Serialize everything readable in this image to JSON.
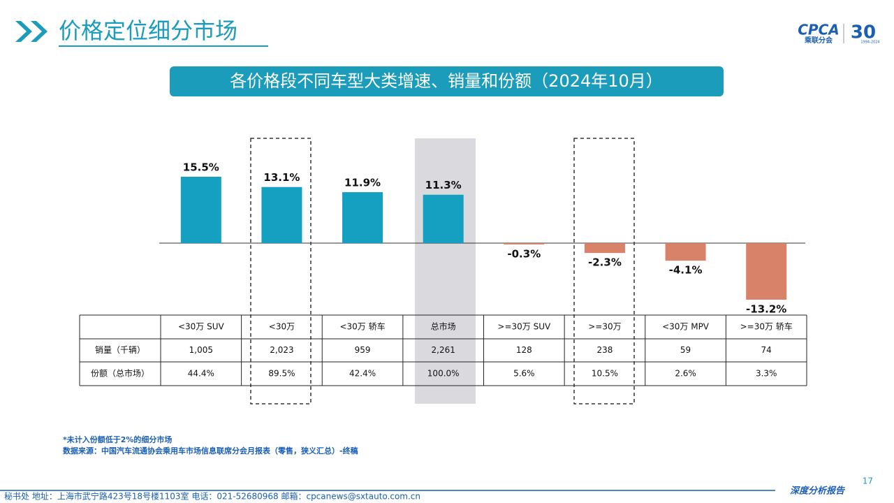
{
  "header": {
    "title": "价格定位细分市场"
  },
  "logo": {
    "brand": "CPCA",
    "name": "乘联分会",
    "anniversary": "30",
    "years": "1994-2024"
  },
  "chart_data": {
    "type": "bar",
    "title": "各价格段不同车型大类增速、销量和份额（2024年10月）",
    "categories": [
      "<30万 SUV",
      "<30万",
      "<30万 轿车",
      "总市场",
      ">=30万 SUV",
      ">=30万",
      "<30万 MPV",
      ">=30万 轿车"
    ],
    "values": [
      15.5,
      13.1,
      11.9,
      11.3,
      -0.3,
      -2.3,
      -4.1,
      -13.2
    ],
    "value_labels": [
      "15.5%",
      "13.1%",
      "11.9%",
      "11.3%",
      "-0.3%",
      "-2.3%",
      "-4.1%",
      "-13.2%"
    ],
    "colors": [
      "#159fc0",
      "#159fc0",
      "#159fc0",
      "#159fc0",
      "#d9826a",
      "#d9826a",
      "#d9826a",
      "#d9826a"
    ],
    "ylim": [
      -15,
      20
    ]
  },
  "table": {
    "rows": [
      {
        "label": "销量（千辆）",
        "cells": [
          "1,005",
          "2,023",
          "959",
          "2,261",
          "128",
          "238",
          "59",
          "74"
        ]
      },
      {
        "label": "份额（总市场）",
        "cells": [
          "44.4%",
          "89.5%",
          "42.4%",
          "100.0%",
          "5.6%",
          "10.5%",
          "2.6%",
          "3.3%"
        ]
      }
    ]
  },
  "notes": [
    "*未计入份额低于2%的细分市场",
    "数据来源：中国汽车流通协会乘用车市场信息联席分会月报表（零售，狭义汇总）-终稿"
  ],
  "footer": {
    "address": "秘书处   地址：上海市武宁路423号18号楼1103室   电话：021-52680968   邮箱：cpcanews@sxtauto.com.cn",
    "report": "深度分析报告",
    "page": "17"
  }
}
